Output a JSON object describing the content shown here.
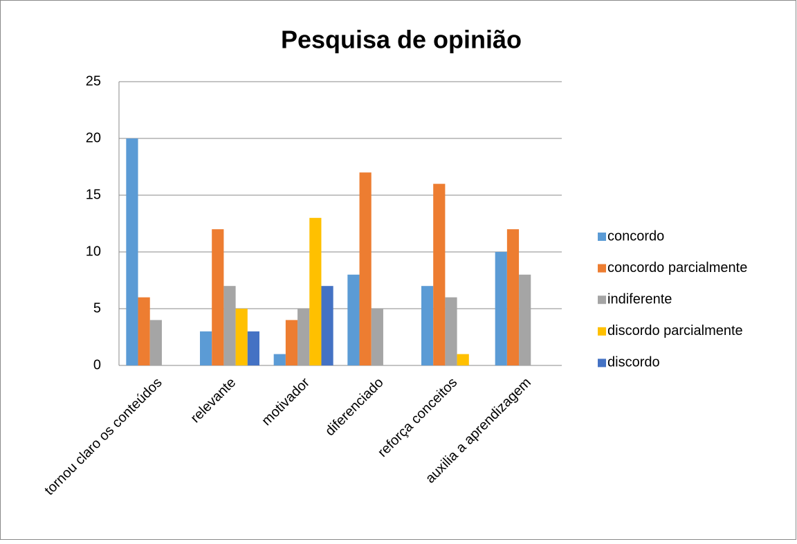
{
  "chart_data": {
    "type": "bar",
    "title": "Pesquisa de opinião",
    "categories": [
      "tornou claro os conteúdos",
      "relevante",
      "motivador",
      "diferenciado",
      "reforça conceitos",
      "auxilia a aprendizagem"
    ],
    "series": [
      {
        "name": "concordo",
        "color": "#5b9bd5",
        "values": [
          20,
          3,
          1,
          8,
          7,
          10
        ]
      },
      {
        "name": "concordo parcialmente",
        "color": "#ed7d31",
        "values": [
          6,
          12,
          4,
          17,
          16,
          12
        ]
      },
      {
        "name": "indiferente",
        "color": "#a5a5a5",
        "values": [
          4,
          7,
          5,
          5,
          6,
          8
        ]
      },
      {
        "name": "discordo parcialmente",
        "color": "#ffc000",
        "values": [
          0,
          5,
          13,
          0,
          1,
          0
        ]
      },
      {
        "name": "discordo",
        "color": "#4472c4",
        "values": [
          0,
          3,
          7,
          0,
          0,
          0
        ]
      }
    ],
    "ylim": [
      0,
      25
    ],
    "yticks": [
      0,
      5,
      10,
      15,
      20,
      25
    ],
    "grid": true,
    "legend": "right"
  }
}
